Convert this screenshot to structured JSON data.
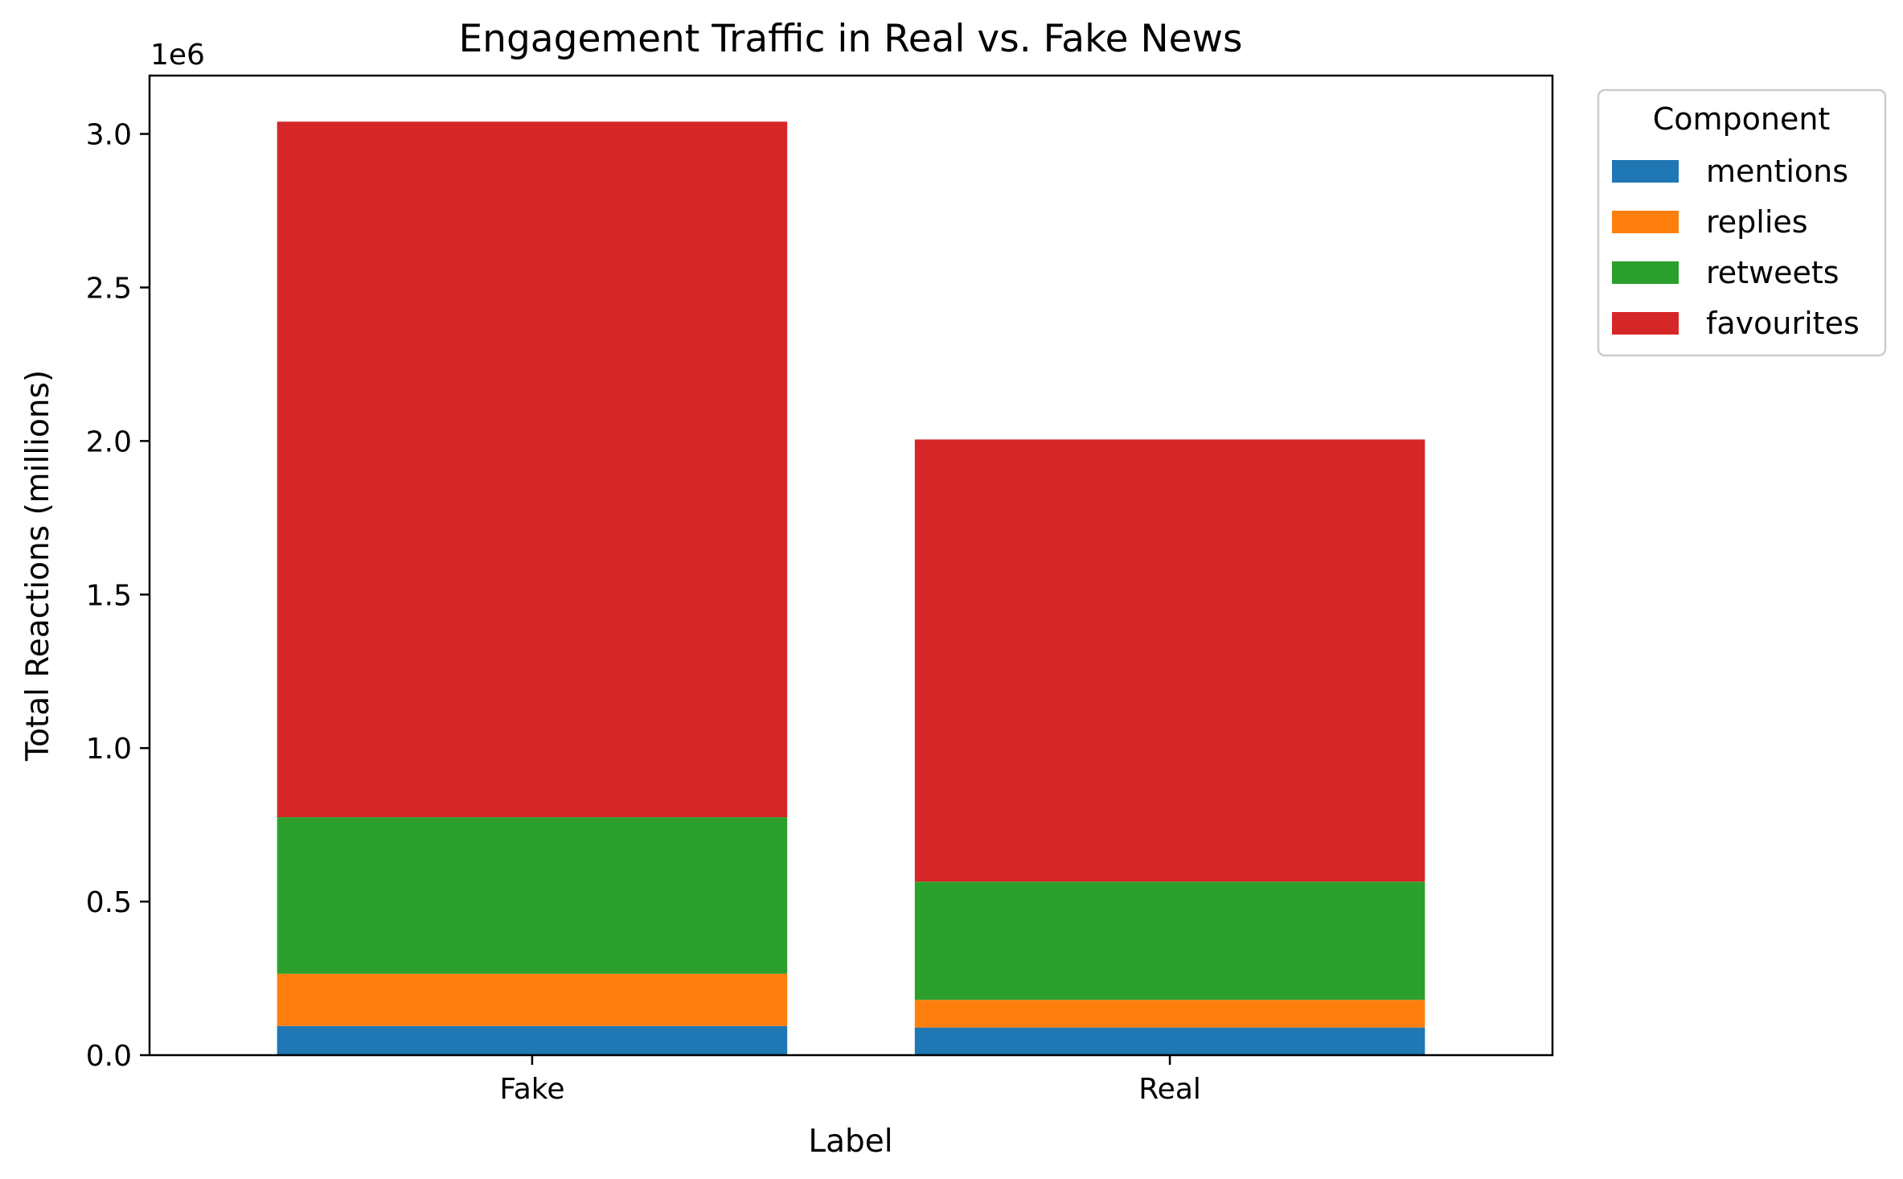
{
  "chart_data": {
    "type": "bar",
    "stacked": true,
    "title": "Engagement Traffic in Real vs. Fake News",
    "xlabel": "Label",
    "ylabel": "Total Reactions (millions)",
    "y_offset_text": "1e6",
    "categories": [
      "Fake",
      "Real"
    ],
    "ylim": [
      0,
      3190000
    ],
    "yticks": [
      0,
      500000,
      1000000,
      1500000,
      2000000,
      2500000,
      3000000
    ],
    "ytick_labels": [
      "0.0",
      "0.5",
      "1.0",
      "1.5",
      "2.0",
      "2.5",
      "3.0"
    ],
    "series": [
      {
        "name": "mentions",
        "color": "#1f77b4",
        "values": [
          95000,
          90000
        ]
      },
      {
        "name": "replies",
        "color": "#ff7f0e",
        "values": [
          170000,
          90000
        ]
      },
      {
        "name": "retweets",
        "color": "#2ca02c",
        "values": [
          510000,
          385000
        ]
      },
      {
        "name": "favourites",
        "color": "#d62728",
        "values": [
          2265000,
          1440000
        ]
      }
    ],
    "legend": {
      "title": "Component",
      "position": "outside-top-right"
    },
    "grid": false
  }
}
